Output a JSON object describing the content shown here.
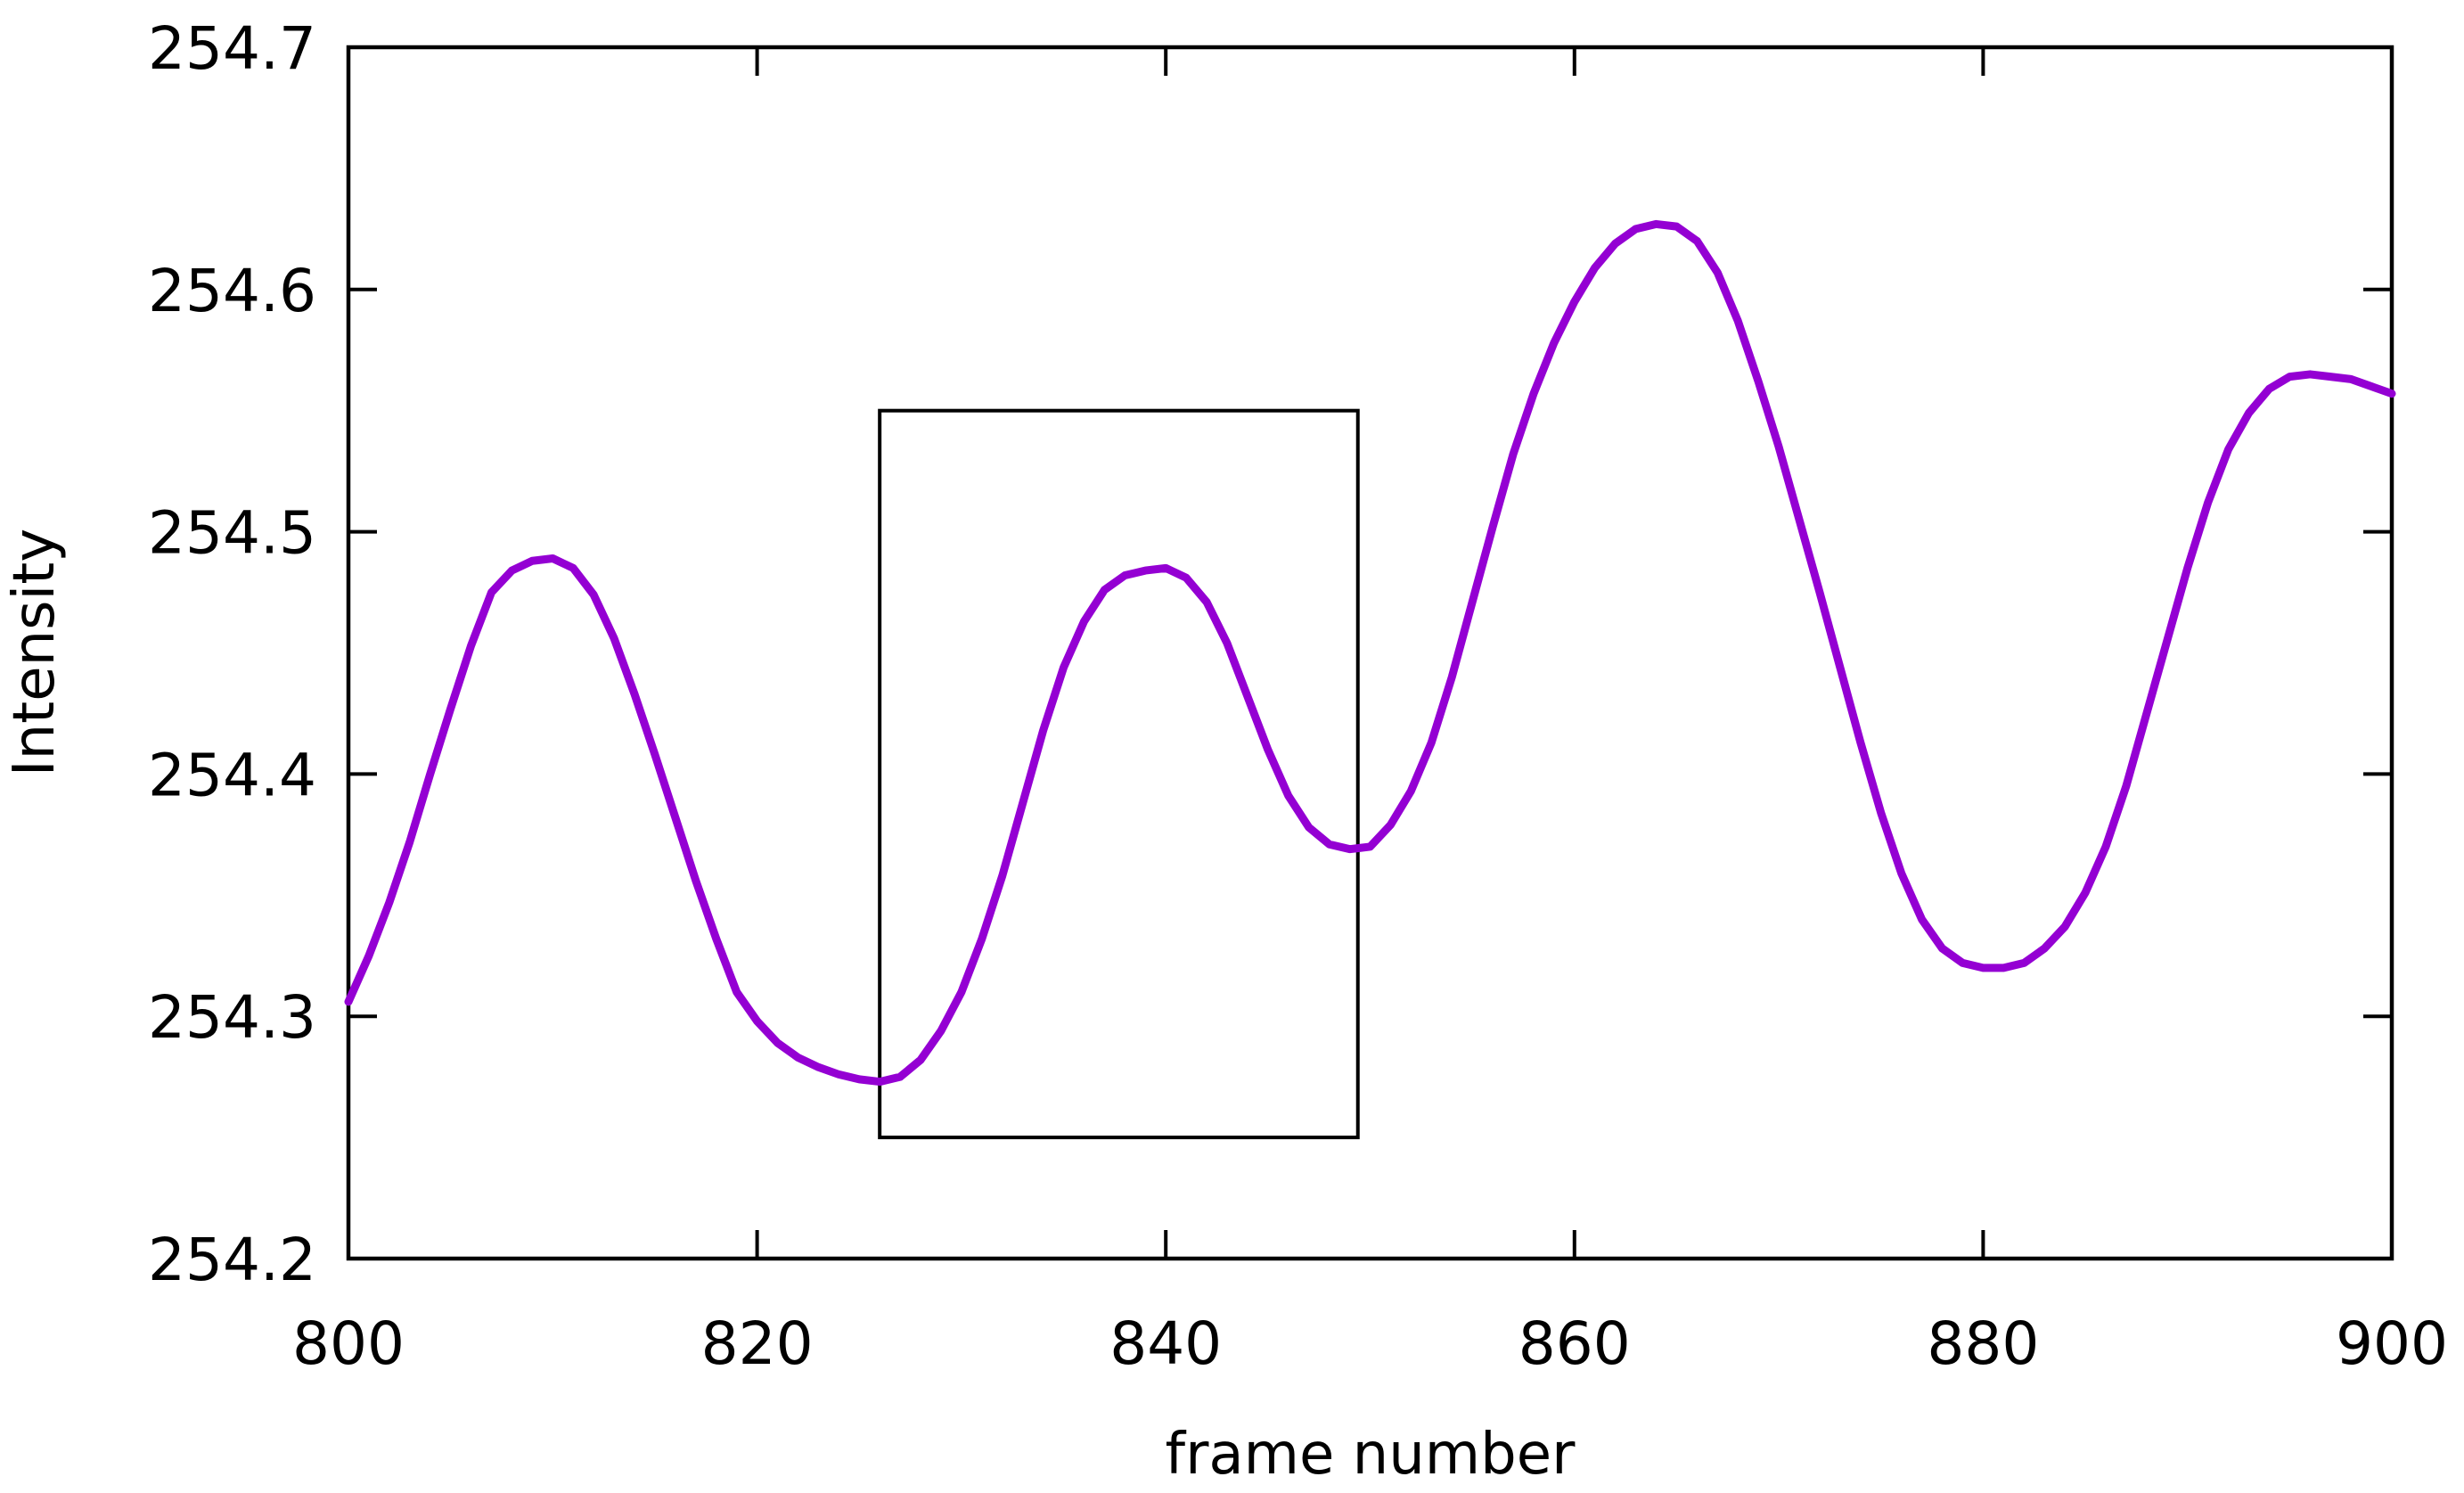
{
  "chart_data": {
    "type": "line",
    "title": "",
    "xlabel": "frame number",
    "ylabel": "Intensity",
    "xlim": [
      800,
      900
    ],
    "ylim": [
      254.2,
      254.7
    ],
    "x_ticks": [
      800,
      820,
      840,
      860,
      880,
      900
    ],
    "y_ticks": [
      254.2,
      254.3,
      254.4,
      254.5,
      254.6,
      254.7
    ],
    "x_tick_labels": [
      "800",
      "820",
      "840",
      "860",
      "880",
      "900"
    ],
    "y_tick_labels": [
      "254.2",
      "254.3",
      "254.4",
      "254.5",
      "254.6",
      "254.7"
    ],
    "grid": false,
    "legend": "none",
    "line_color": "#9400D3",
    "series": [
      {
        "x": [
          800,
          801,
          802,
          803,
          804,
          805,
          806,
          807,
          808,
          809,
          810,
          811,
          812,
          813,
          814,
          815,
          816,
          817,
          818,
          819,
          820,
          821,
          822,
          823,
          824,
          825,
          826,
          827,
          828,
          829,
          830,
          831,
          832,
          833,
          834,
          835,
          836,
          837,
          838,
          839,
          840,
          841,
          842,
          843,
          844,
          845,
          846,
          847,
          848,
          849,
          850,
          851,
          852,
          853,
          854,
          855,
          856,
          857,
          858,
          859,
          860,
          861,
          862,
          863,
          864,
          865,
          866,
          867,
          868,
          869,
          870,
          871,
          872,
          873,
          874,
          875,
          876,
          877,
          878,
          879,
          880,
          881,
          882,
          883,
          884,
          885,
          886,
          887,
          888,
          889,
          890,
          891,
          892,
          893,
          894,
          895,
          896,
          897,
          898,
          899,
          900
        ],
        "y": [
          254.306,
          254.325,
          254.347,
          254.372,
          254.4,
          254.427,
          254.453,
          254.475,
          254.484,
          254.488,
          254.489,
          254.485,
          254.474,
          254.456,
          254.433,
          254.408,
          254.382,
          254.356,
          254.332,
          254.31,
          254.298,
          254.289,
          254.283,
          254.279,
          254.276,
          254.274,
          254.273,
          254.275,
          254.282,
          254.294,
          254.31,
          254.332,
          254.358,
          254.388,
          254.418,
          254.444,
          254.463,
          254.476,
          254.482,
          254.484,
          254.485,
          254.481,
          254.471,
          254.454,
          254.432,
          254.41,
          254.391,
          254.378,
          254.371,
          254.369,
          254.37,
          254.379,
          254.393,
          254.413,
          254.44,
          254.471,
          254.502,
          254.532,
          254.557,
          254.578,
          254.595,
          254.609,
          254.619,
          254.625,
          254.627,
          254.626,
          254.62,
          254.607,
          254.587,
          254.562,
          254.535,
          254.505,
          254.475,
          254.444,
          254.413,
          254.384,
          254.359,
          254.34,
          254.328,
          254.322,
          254.32,
          254.32,
          254.322,
          254.328,
          254.337,
          254.351,
          254.37,
          254.395,
          254.425,
          254.455,
          254.485,
          254.512,
          254.534,
          254.549,
          254.559,
          254.564,
          254.565,
          254.564,
          254.563,
          254.56,
          254.557
        ]
      }
    ],
    "annotations": [
      {
        "shape": "rectangle",
        "x_range": [
          826,
          849.4
        ],
        "y_range": [
          254.25,
          254.55
        ]
      }
    ]
  }
}
